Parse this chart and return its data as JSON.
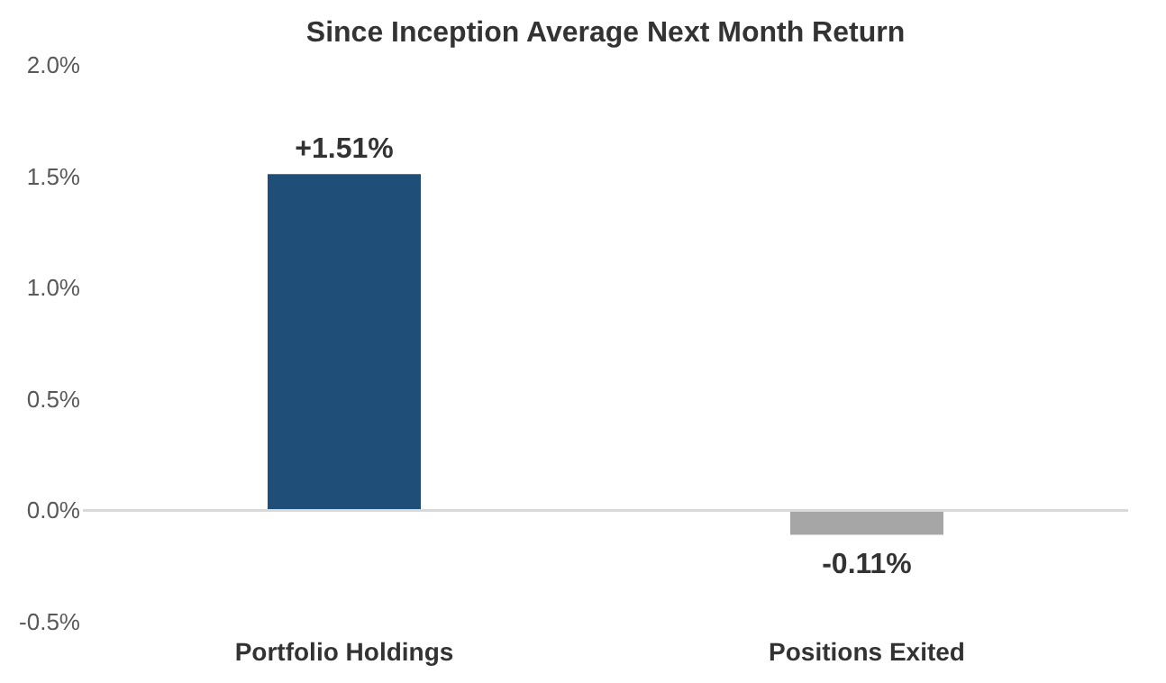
{
  "chart_data": {
    "type": "bar",
    "title": "Since Inception Average Next Month Return",
    "categories": [
      "Portfolio Holdings",
      "Positions Exited"
    ],
    "values": [
      1.51,
      -0.11
    ],
    "colors": [
      "#1f4e79",
      "#a6a6a6"
    ],
    "value_labels": [
      "+1.51%",
      "-0.11%"
    ],
    "ylim": [
      -0.5,
      2.0
    ],
    "yticks": [
      {
        "value": -0.5,
        "label": "-0.5%"
      },
      {
        "value": 0.0,
        "label": "0.0%"
      },
      {
        "value": 0.5,
        "label": "0.5%"
      },
      {
        "value": 1.0,
        "label": "1.0%"
      },
      {
        "value": 1.5,
        "label": "1.5%"
      },
      {
        "value": 2.0,
        "label": "2.0%"
      }
    ],
    "ref_lines": [
      {
        "axis": "y",
        "value": 0,
        "color": "#d9d9d9"
      }
    ],
    "grid": false
  }
}
